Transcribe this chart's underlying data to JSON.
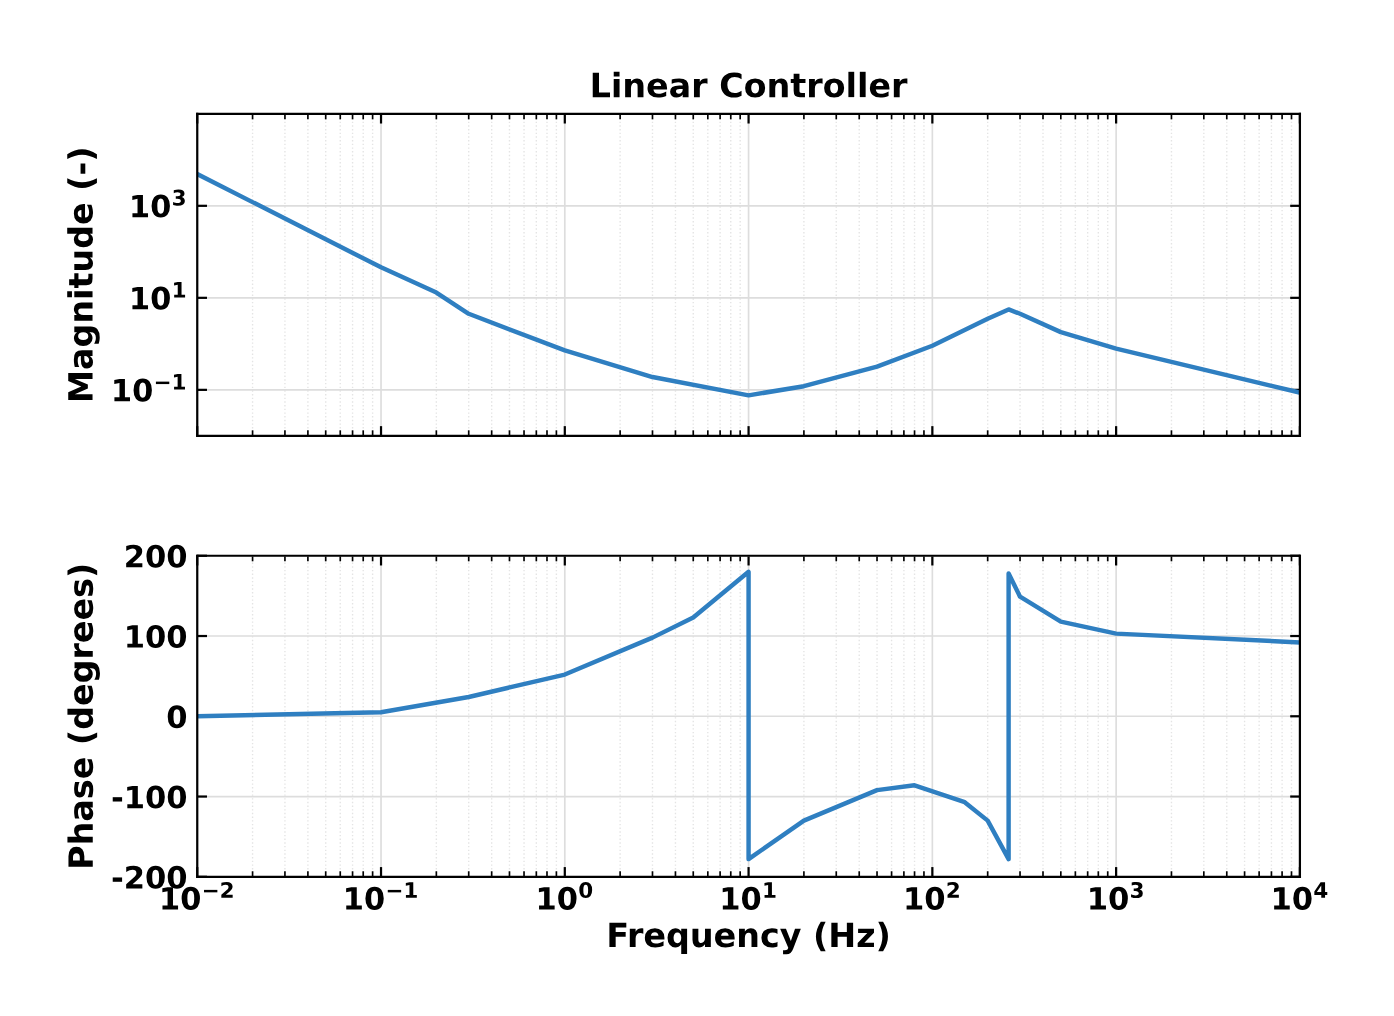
{
  "chart_data": [
    {
      "type": "line",
      "title": "Linear Controller",
      "ylabel": "Magnitude (-)",
      "log": "xy",
      "grid": true,
      "tick_labels": "y",
      "line_style": "solid",
      "marker": "none",
      "xlim": [
        0.01,
        10000
      ],
      "xticks": [
        {
          "value": 0.01,
          "label": null
        },
        {
          "value": 0.1,
          "label": null
        },
        {
          "value": 1,
          "label": null
        },
        {
          "value": 10,
          "label": null
        },
        {
          "value": 100,
          "label": null
        },
        {
          "value": 1000,
          "label": null
        },
        {
          "value": 10000,
          "label": null
        }
      ],
      "ylim": [
        0.01,
        100000
      ],
      "yticks": [
        {
          "value": 0.1,
          "label": "10$^{−1}$"
        },
        {
          "value": 10,
          "label": "10$^{1}$"
        },
        {
          "value": 1000,
          "label": "10$^{3}$"
        }
      ],
      "series": [
        {
          "color": "#2f7fc1",
          "x": [
            0.01,
            0.1,
            0.2,
            0.3,
            1,
            3,
            10,
            20,
            50,
            100,
            200,
            260,
            300,
            500,
            1000,
            10000
          ],
          "values": [
            4900,
            46,
            13,
            4.5,
            0.72,
            0.19,
            0.076,
            0.12,
            0.32,
            0.91,
            3.5,
            5.6,
            4.5,
            1.8,
            0.79,
            0.087
          ]
        }
      ]
    },
    {
      "type": "line",
      "xlabel": "Frequency (Hz)",
      "ylabel": "Phase (degrees)",
      "log": "x",
      "grid": true,
      "line_style": "solid",
      "marker": "none",
      "xlim": [
        0.01,
        10000
      ],
      "xticks": [
        {
          "value": 0.01,
          "label": "10$^{−2}$"
        },
        {
          "value": 0.1,
          "label": "10$^{−1}$"
        },
        {
          "value": 1,
          "label": "10$^{0}$"
        },
        {
          "value": 10,
          "label": "10$^{1}$"
        },
        {
          "value": 100,
          "label": "10$^{2}$"
        },
        {
          "value": 1000,
          "label": "10$^{3}$"
        },
        {
          "value": 10000,
          "label": "10$^{4}$"
        }
      ],
      "ylim": [
        -200,
        200
      ],
      "yticks": [
        -200,
        -100,
        0,
        100,
        200
      ],
      "series": [
        {
          "color": "#2f7fc1",
          "x": [
            0.01,
            0.1,
            0.3,
            1,
            3,
            5,
            10,
            10,
            20,
            50,
            80,
            150,
            200,
            260,
            260,
            300,
            500,
            1000,
            10000
          ],
          "values": [
            0,
            5,
            24,
            52,
            98,
            123,
            180,
            -178,
            -130,
            -92,
            -86,
            -107,
            -130,
            -178,
            178,
            149,
            118,
            103,
            92
          ]
        }
      ]
    }
  ]
}
